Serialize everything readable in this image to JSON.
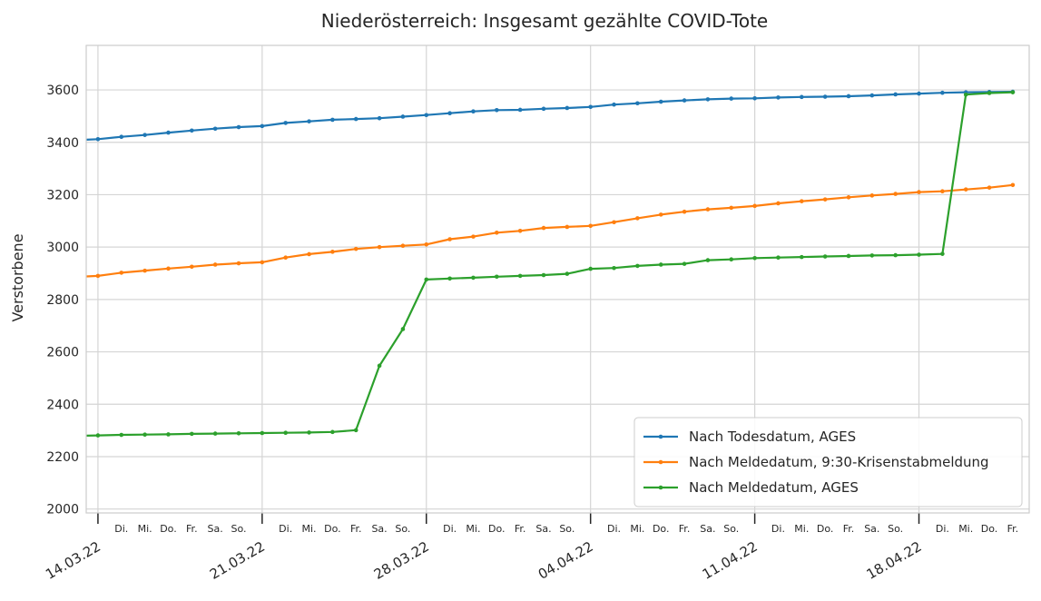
{
  "chart_data": {
    "type": "line",
    "title": "Niederösterreich: Insgesamt gezählte COVID-Tote",
    "xlabel": "",
    "ylabel": "Verstorbene",
    "ylim": [
      1985,
      3770
    ],
    "yticks": [
      2000,
      2200,
      2400,
      2600,
      2800,
      3000,
      3200,
      3400,
      3600
    ],
    "x_range_days": [
      -0.5,
      39.7
    ],
    "major_ticks": [
      {
        "day": 0,
        "label": "14.03.22"
      },
      {
        "day": 7,
        "label": "21.03.22"
      },
      {
        "day": 14,
        "label": "28.03.22"
      },
      {
        "day": 21,
        "label": "04.04.22"
      },
      {
        "day": 28,
        "label": "11.04.22"
      },
      {
        "day": 35,
        "label": "18.04.22"
      }
    ],
    "minor_ticks": [
      {
        "day": 1,
        "label": "Di."
      },
      {
        "day": 2,
        "label": "Mi."
      },
      {
        "day": 3,
        "label": "Do."
      },
      {
        "day": 4,
        "label": "Fr."
      },
      {
        "day": 5,
        "label": "Sa."
      },
      {
        "day": 6,
        "label": "So."
      },
      {
        "day": 8,
        "label": "Di."
      },
      {
        "day": 9,
        "label": "Mi."
      },
      {
        "day": 10,
        "label": "Do."
      },
      {
        "day": 11,
        "label": "Fr."
      },
      {
        "day": 12,
        "label": "Sa."
      },
      {
        "day": 13,
        "label": "So."
      },
      {
        "day": 15,
        "label": "Di."
      },
      {
        "day": 16,
        "label": "Mi."
      },
      {
        "day": 17,
        "label": "Do."
      },
      {
        "day": 18,
        "label": "Fr."
      },
      {
        "day": 19,
        "label": "Sa."
      },
      {
        "day": 20,
        "label": "So."
      },
      {
        "day": 22,
        "label": "Di."
      },
      {
        "day": 23,
        "label": "Mi."
      },
      {
        "day": 24,
        "label": "Do."
      },
      {
        "day": 25,
        "label": "Fr."
      },
      {
        "day": 26,
        "label": "Sa."
      },
      {
        "day": 27,
        "label": "So."
      },
      {
        "day": 29,
        "label": "Di."
      },
      {
        "day": 30,
        "label": "Mi."
      },
      {
        "day": 31,
        "label": "Do."
      },
      {
        "day": 32,
        "label": "Fr."
      },
      {
        "day": 33,
        "label": "Sa."
      },
      {
        "day": 34,
        "label": "So."
      },
      {
        "day": 36,
        "label": "Di."
      },
      {
        "day": 37,
        "label": "Mi."
      },
      {
        "day": 38,
        "label": "Do."
      },
      {
        "day": 39,
        "label": "Fr."
      }
    ],
    "grid": true,
    "legend": "bottom-right",
    "series": [
      {
        "name": "Nach Todesdatum, AGES",
        "color": "#1f77b4",
        "points": [
          [
            -0.5,
            3410
          ],
          [
            0,
            3412
          ],
          [
            1,
            3421
          ],
          [
            2,
            3428
          ],
          [
            3,
            3437
          ],
          [
            4,
            3445
          ],
          [
            5,
            3452
          ],
          [
            6,
            3458
          ],
          [
            7,
            3462
          ],
          [
            8,
            3474
          ],
          [
            9,
            3480
          ],
          [
            10,
            3486
          ],
          [
            11,
            3489
          ],
          [
            12,
            3492
          ],
          [
            13,
            3498
          ],
          [
            14,
            3504
          ],
          [
            15,
            3511
          ],
          [
            16,
            3518
          ],
          [
            17,
            3523
          ],
          [
            18,
            3524
          ],
          [
            19,
            3528
          ],
          [
            20,
            3531
          ],
          [
            21,
            3535
          ],
          [
            22,
            3544
          ],
          [
            23,
            3549
          ],
          [
            24,
            3555
          ],
          [
            25,
            3560
          ],
          [
            26,
            3564
          ],
          [
            27,
            3567
          ],
          [
            28,
            3568
          ],
          [
            29,
            3571
          ],
          [
            30,
            3573
          ],
          [
            31,
            3574
          ],
          [
            32,
            3576
          ],
          [
            33,
            3579
          ],
          [
            34,
            3583
          ],
          [
            35,
            3586
          ],
          [
            36,
            3589
          ],
          [
            37,
            3591
          ],
          [
            38,
            3592
          ],
          [
            39,
            3593
          ]
        ]
      },
      {
        "name": "Nach Meldedatum, 9:30-Krisenstabmeldung",
        "color": "#ff7f0e",
        "points": [
          [
            -0.5,
            2888
          ],
          [
            0,
            2890
          ],
          [
            1,
            2902
          ],
          [
            2,
            2910
          ],
          [
            3,
            2918
          ],
          [
            4,
            2925
          ],
          [
            5,
            2933
          ],
          [
            6,
            2938
          ],
          [
            7,
            2942
          ],
          [
            8,
            2960
          ],
          [
            9,
            2973
          ],
          [
            10,
            2982
          ],
          [
            11,
            2993
          ],
          [
            12,
            3000
          ],
          [
            13,
            3005
          ],
          [
            14,
            3010
          ],
          [
            15,
            3030
          ],
          [
            16,
            3040
          ],
          [
            17,
            3055
          ],
          [
            18,
            3062
          ],
          [
            19,
            3073
          ],
          [
            20,
            3077
          ],
          [
            21,
            3081
          ],
          [
            22,
            3095
          ],
          [
            23,
            3110
          ],
          [
            24,
            3124
          ],
          [
            25,
            3135
          ],
          [
            26,
            3144
          ],
          [
            27,
            3150
          ],
          [
            28,
            3157
          ],
          [
            29,
            3167
          ],
          [
            30,
            3175
          ],
          [
            31,
            3182
          ],
          [
            32,
            3190
          ],
          [
            33,
            3197
          ],
          [
            34,
            3203
          ],
          [
            35,
            3210
          ],
          [
            36,
            3213
          ],
          [
            37,
            3220
          ],
          [
            38,
            3227
          ],
          [
            39,
            3237
          ]
        ]
      },
      {
        "name": "Nach Meldedatum, AGES",
        "color": "#2ca02c",
        "points": [
          [
            -0.5,
            2280
          ],
          [
            0,
            2281
          ],
          [
            1,
            2283
          ],
          [
            2,
            2284
          ],
          [
            3,
            2285
          ],
          [
            4,
            2287
          ],
          [
            5,
            2288
          ],
          [
            6,
            2289
          ],
          [
            7,
            2290
          ],
          [
            8,
            2291
          ],
          [
            9,
            2292
          ],
          [
            10,
            2294
          ],
          [
            11,
            2301
          ],
          [
            12,
            2547
          ],
          [
            13,
            2687
          ],
          [
            14,
            2876
          ],
          [
            15,
            2880
          ],
          [
            16,
            2883
          ],
          [
            17,
            2887
          ],
          [
            18,
            2890
          ],
          [
            19,
            2893
          ],
          [
            20,
            2898
          ],
          [
            21,
            2917
          ],
          [
            22,
            2920
          ],
          [
            23,
            2928
          ],
          [
            24,
            2933
          ],
          [
            25,
            2936
          ],
          [
            26,
            2950
          ],
          [
            27,
            2953
          ],
          [
            28,
            2958
          ],
          [
            29,
            2960
          ],
          [
            30,
            2962
          ],
          [
            31,
            2964
          ],
          [
            32,
            2966
          ],
          [
            33,
            2968
          ],
          [
            34,
            2969
          ],
          [
            35,
            2971
          ],
          [
            36,
            2974
          ],
          [
            37,
            3582
          ],
          [
            38,
            3588
          ],
          [
            39,
            3591
          ]
        ]
      }
    ]
  }
}
